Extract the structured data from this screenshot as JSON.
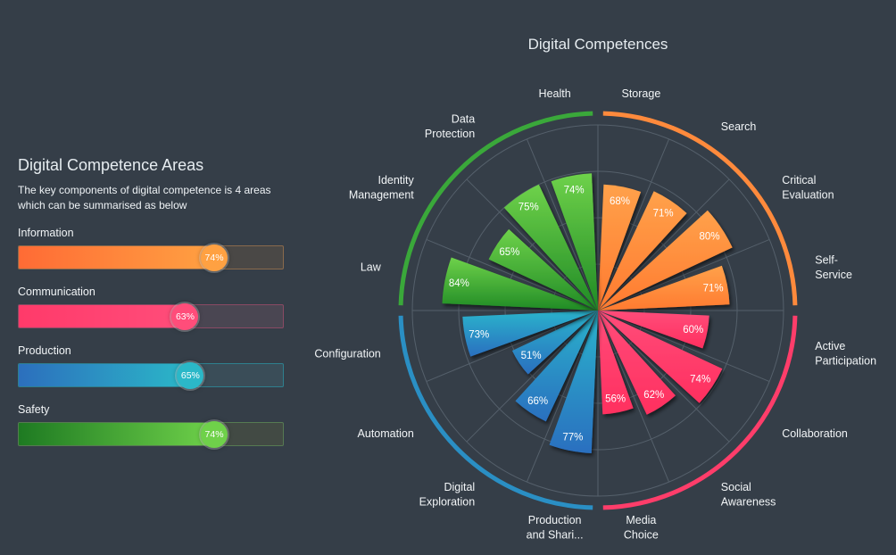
{
  "panel": {
    "title": "Digital Competence Areas",
    "description": "The key components of digital competence is 4 areas which can be summarised as below",
    "areas": [
      {
        "label": "Information",
        "value": 74,
        "display": "74%",
        "color_start": "#ff6b35",
        "color_end": "#ffa142",
        "track_color": "#4a4846",
        "border_color": "#8a6a4c"
      },
      {
        "label": "Communication",
        "value": 63,
        "display": "63%",
        "color_start": "#ff3a6a",
        "color_end": "#ff4d7a",
        "track_color": "#4a4652",
        "border_color": "#8a4a64"
      },
      {
        "label": "Production",
        "value": 65,
        "display": "65%",
        "color_start": "#2c6fbd",
        "color_end": "#2bb8c8",
        "track_color": "#3a4d58",
        "border_color": "#2e7f8e"
      },
      {
        "label": "Safety",
        "value": 74,
        "display": "74%",
        "color_start": "#1e7a22",
        "color_end": "#6fd14a",
        "track_color": "#424a44",
        "border_color": "#567a52"
      }
    ]
  },
  "chart_data": {
    "type": "polar-bar",
    "title": "Digital Competences",
    "rmax": 100,
    "groups": [
      {
        "name": "Information",
        "color_light": "#ffa14a",
        "color_dark": "#ff7a30",
        "ring": "#ff8a3c"
      },
      {
        "name": "Communication",
        "color_light": "#ff4d7a",
        "color_dark": "#ff2f5f",
        "ring": "#ff3d6a"
      },
      {
        "name": "Production",
        "color_light": "#2bb4cc",
        "color_dark": "#2a6fbf",
        "ring": "#2a8fc4"
      },
      {
        "name": "Safety",
        "color_light": "#6ed14a",
        "color_dark": "#1f8a25",
        "ring": "#3aa83a"
      }
    ],
    "categories": [
      {
        "name": "Storage",
        "lines": [
          "Storage"
        ],
        "value": 68,
        "group": 0
      },
      {
        "name": "Search",
        "lines": [
          "Search"
        ],
        "value": 71,
        "group": 0
      },
      {
        "name": "Critical Evaluation",
        "lines": [
          "Critical",
          "Evaluation"
        ],
        "value": 80,
        "group": 0
      },
      {
        "name": "Self-Service",
        "lines": [
          "Self-",
          "Service"
        ],
        "value": 71,
        "group": 0
      },
      {
        "name": "Active Participation",
        "lines": [
          "Active",
          "Participation"
        ],
        "value": 60,
        "group": 1
      },
      {
        "name": "Collaboration",
        "lines": [
          "Collaboration"
        ],
        "value": 74,
        "group": 1
      },
      {
        "name": "Social Awareness",
        "lines": [
          "Social",
          "Awareness"
        ],
        "value": 62,
        "group": 1
      },
      {
        "name": "Media Choice",
        "lines": [
          "Media",
          "Choice"
        ],
        "value": 56,
        "group": 1
      },
      {
        "name": "Production and Shari...",
        "lines": [
          "Production",
          "and Shari..."
        ],
        "value": 77,
        "group": 2
      },
      {
        "name": "Digital Exploration",
        "lines": [
          "Digital",
          "Exploration"
        ],
        "value": 66,
        "group": 2
      },
      {
        "name": "Automation",
        "lines": [
          "Automation"
        ],
        "value": 51,
        "group": 2
      },
      {
        "name": "Configuration",
        "lines": [
          "Configuration"
        ],
        "value": 73,
        "group": 2
      },
      {
        "name": "Law",
        "lines": [
          "Law"
        ],
        "value": 84,
        "group": 3
      },
      {
        "name": "Identity Management",
        "lines": [
          "Identity",
          "Management"
        ],
        "value": 65,
        "group": 3
      },
      {
        "name": "Data Protection",
        "lines": [
          "Data",
          "Protection"
        ],
        "value": 75,
        "group": 3
      },
      {
        "name": "Health",
        "lines": [
          "Health"
        ],
        "value": 74,
        "group": 3
      }
    ]
  }
}
